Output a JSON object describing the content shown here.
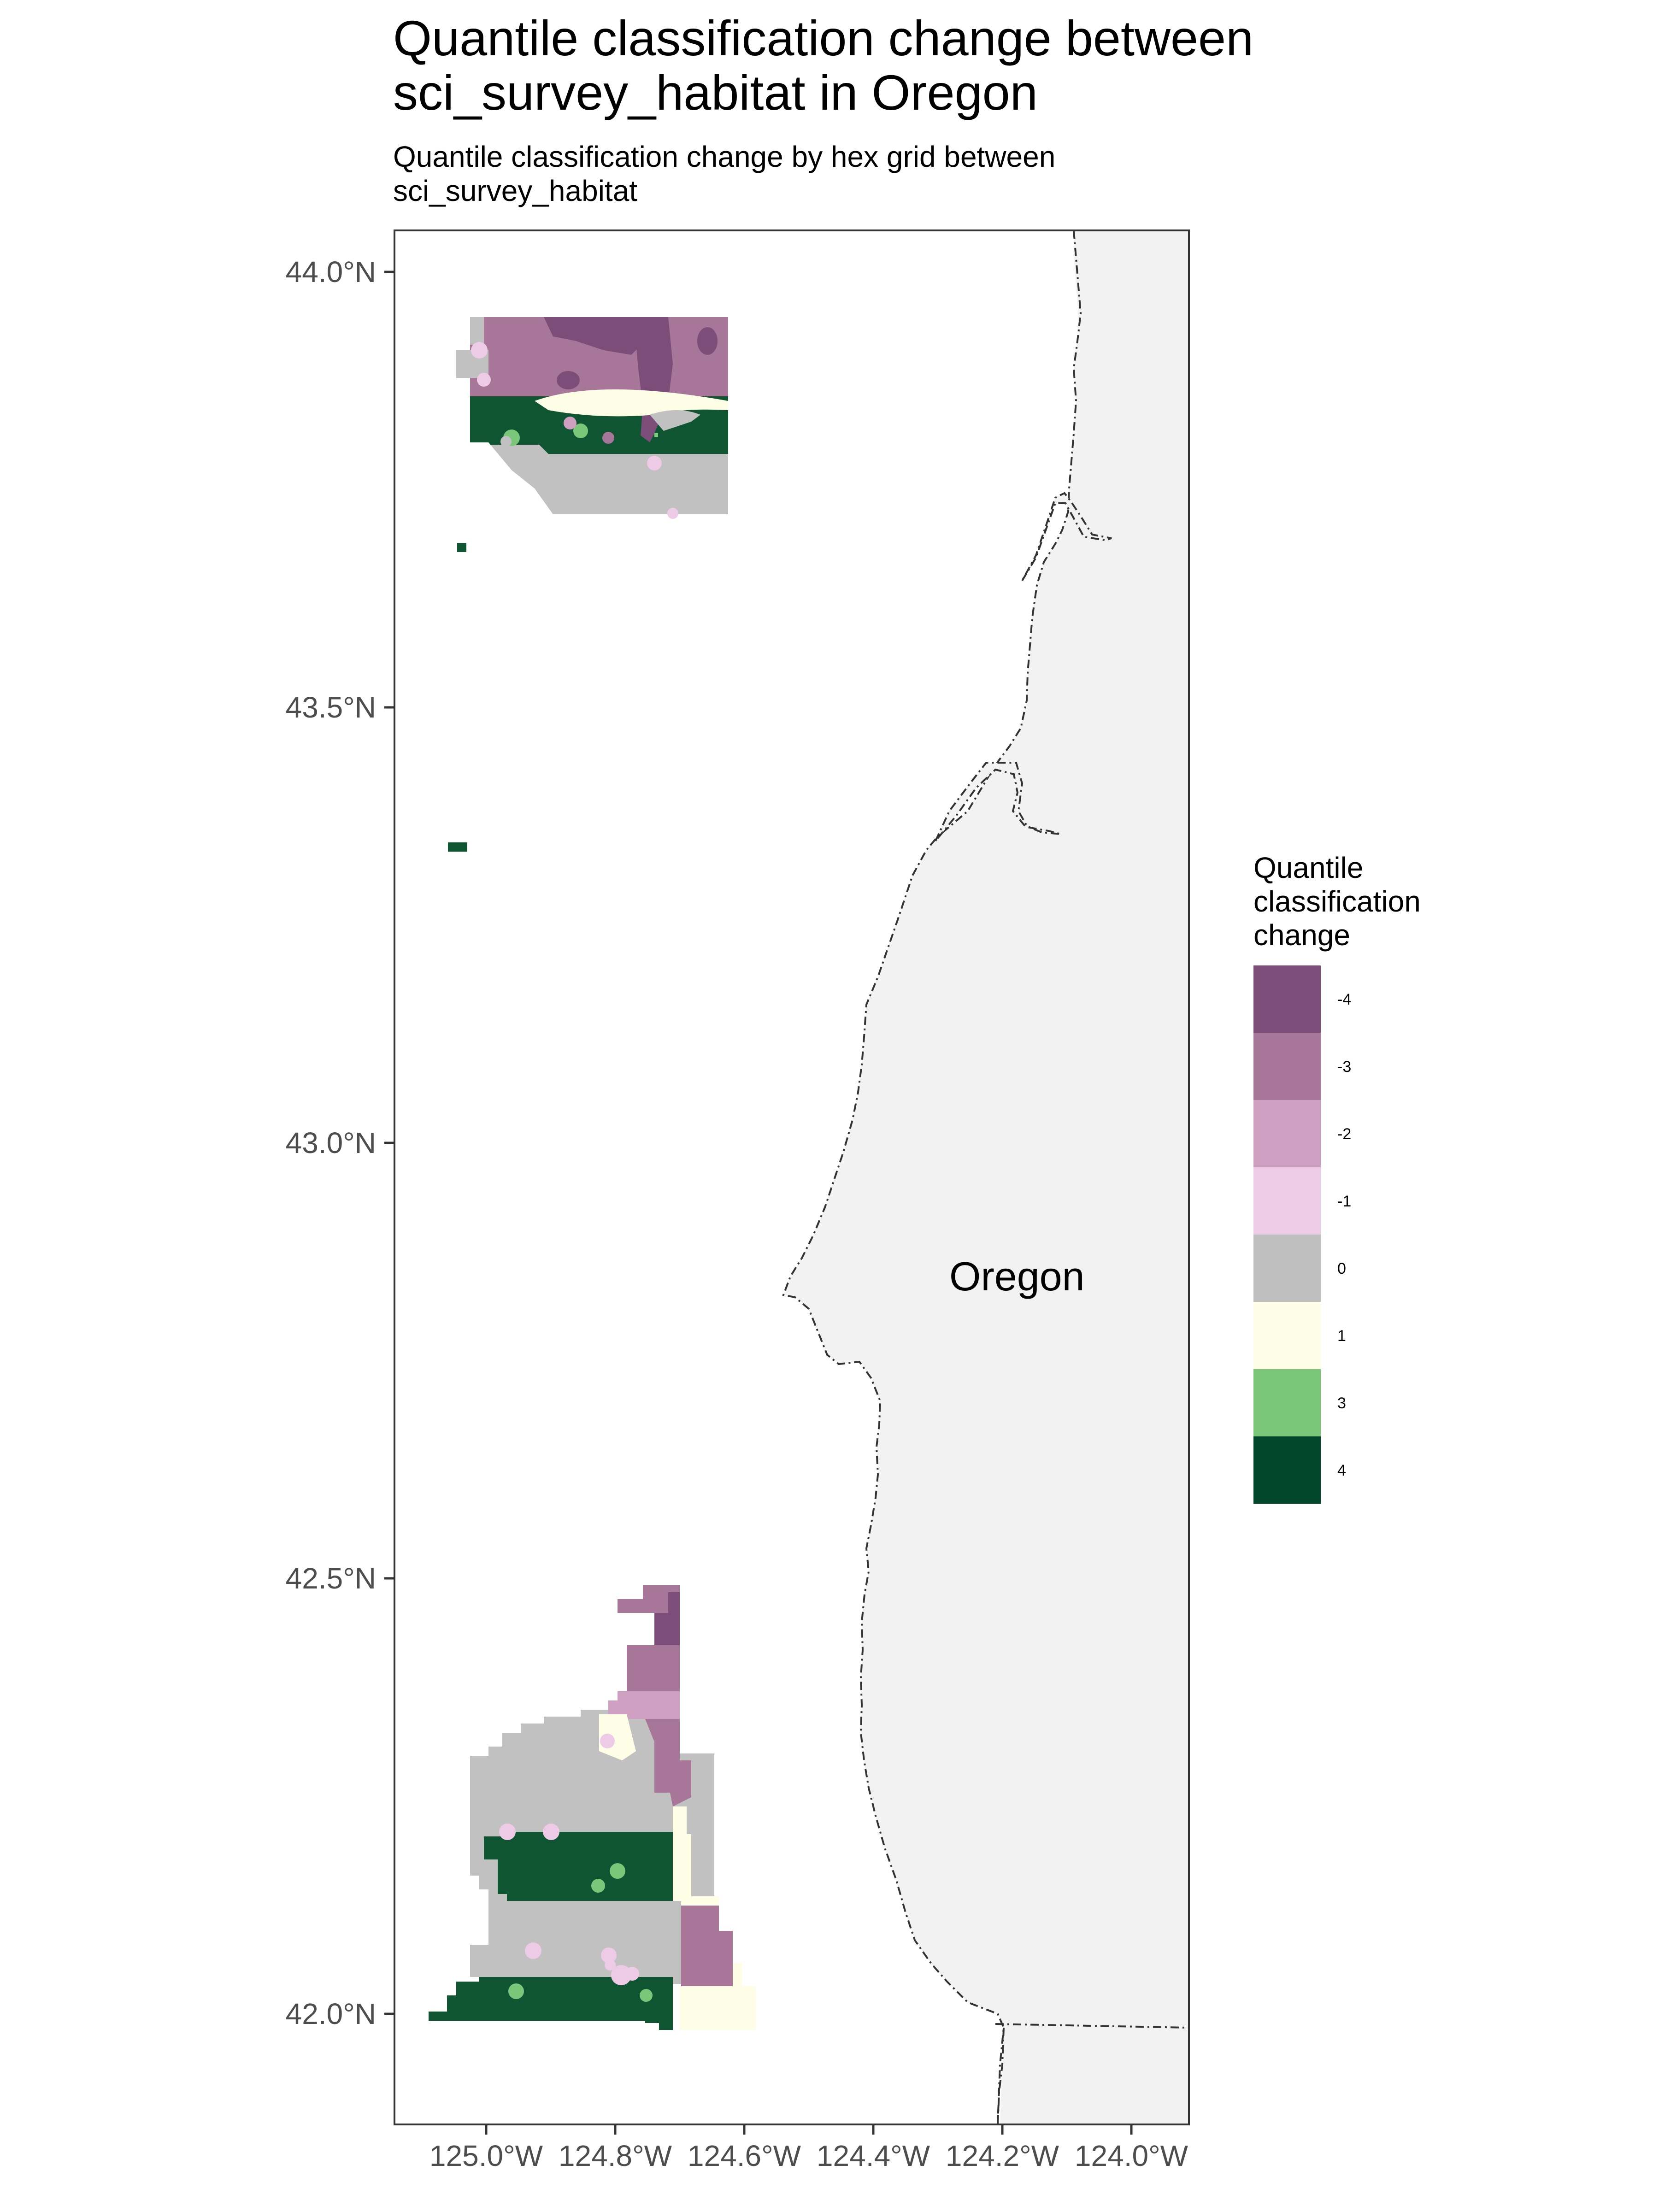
{
  "title_line1": "Quantile classification change between",
  "title_line2": " sci_survey_habitat in Oregon",
  "subtitle_line1": "Quantile classification change by hex grid between",
  "subtitle_line2": " sci_survey_habitat",
  "state_label": "Oregon",
  "axes": {
    "y_ticks": [
      "44.0°N",
      "43.5°N",
      "43.0°N",
      "42.5°N",
      "42.0°N"
    ],
    "x_ticks": [
      "125.0°W",
      "124.8°W",
      "124.6°W",
      "124.4°W",
      "124.2°W",
      "124.0°W"
    ]
  },
  "legend": {
    "title_lines": [
      "Quantile",
      "classification",
      "change"
    ],
    "items": [
      {
        "label": "-4",
        "color": "#7b4d78"
      },
      {
        "label": "-3",
        "color": "#a77698"
      },
      {
        "label": "-2",
        "color": "#cf9fc2"
      },
      {
        "label": "-1",
        "color": "#edcae6"
      },
      {
        "label": "0",
        "color": "#bfbfbf"
      },
      {
        "label": "1",
        "color": "#fefee6"
      },
      {
        "label": "3",
        "color": "#7ac77a"
      },
      {
        "label": "4",
        "color": "#00472c"
      }
    ]
  },
  "colors": {
    "land": "#f2f2f2",
    "dark_green": "#0f5532",
    "grey": "#c1c1c1",
    "coast_line": "#333333"
  }
}
